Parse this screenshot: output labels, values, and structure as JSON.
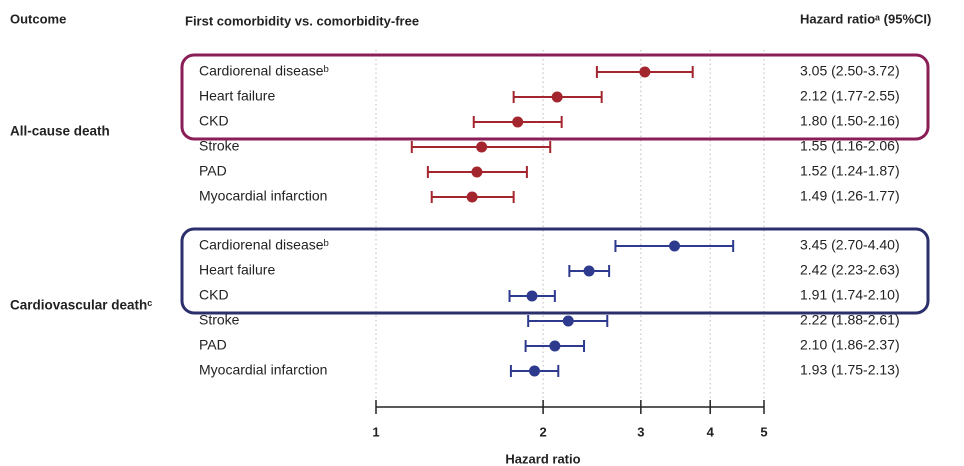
{
  "chart_data": {
    "type": "forest",
    "headers": {
      "outcome": "Outcome",
      "comparison": "First comorbidity vs. comorbidity-free",
      "estimate": "Hazard ratioᵃ (95%CI)"
    },
    "x_label": "Hazard ratio",
    "log_x": true,
    "xlim": [
      1,
      5
    ],
    "xticks": [
      1,
      2,
      3,
      4,
      5
    ],
    "grid": true,
    "groups": [
      {
        "name": "All-cause death",
        "color": "#a3262f",
        "box_color": "#8a1e57",
        "categories": [
          "Cardiorenal diseaseᵇ",
          "Heart failure",
          "CKD",
          "Stroke",
          "PAD",
          "Myocardial infarction"
        ],
        "values": [
          3.05,
          2.12,
          1.8,
          1.55,
          1.52,
          1.49
        ],
        "lower": [
          2.5,
          1.77,
          1.5,
          1.16,
          1.24,
          1.26
        ],
        "upper": [
          3.72,
          2.55,
          2.16,
          2.06,
          1.87,
          1.77
        ],
        "value_labels": [
          "3.05 (2.50-3.72)",
          "2.12 (1.77-2.55)",
          "1.80 (1.50-2.16)",
          "1.55 (1.16-2.06)",
          "1.52 (1.24-1.87)",
          "1.49 (1.26-1.77)"
        ]
      },
      {
        "name": "Cardiovascular deathᶜ",
        "color": "#2e3a8e",
        "box_color": "#2b2f6b",
        "categories": [
          "Cardiorenal diseaseᵇ",
          "Heart failure",
          "CKD",
          "Stroke",
          "PAD",
          "Myocardial infarction"
        ],
        "values": [
          3.45,
          2.42,
          1.91,
          2.22,
          2.1,
          1.93
        ],
        "lower": [
          2.7,
          2.23,
          1.74,
          1.88,
          1.86,
          1.75
        ],
        "upper": [
          4.4,
          2.63,
          2.1,
          2.61,
          2.37,
          2.13
        ],
        "value_labels": [
          "3.45 (2.70-4.40)",
          "2.42 (2.23-2.63)",
          "1.91 (1.74-2.10)",
          "2.22 (1.88-2.61)",
          "2.10 (1.86-2.37)",
          "1.93 (1.75-2.13)"
        ]
      }
    ]
  }
}
